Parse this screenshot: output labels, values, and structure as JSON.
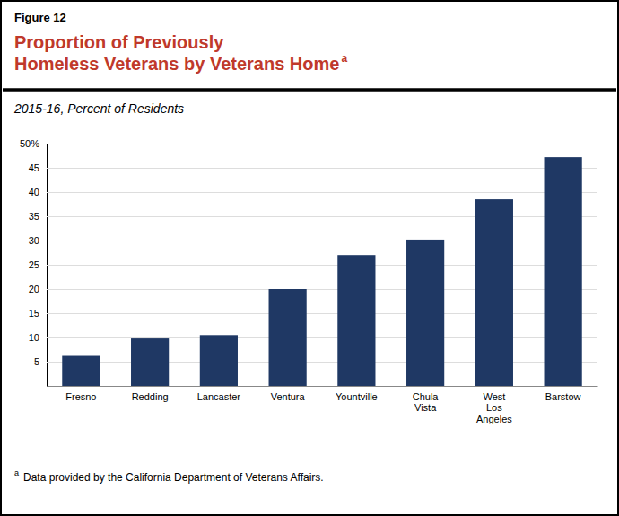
{
  "chart_data": {
    "type": "bar",
    "figure_label": "Figure 12",
    "title": "Proportion of Previously\nHomeless Veterans by Veterans Home",
    "title_superscript": "a",
    "subtitle": "2015-16, Percent of Residents",
    "footnote_marker": "a",
    "footnote": "Data provided by the California Department of Veterans Affairs.",
    "categories": [
      "Fresno",
      "Redding",
      "Lancaster",
      "Ventura",
      "Yountville",
      "Chula\nVista",
      "West\nLos\nAngeles",
      "Barstow"
    ],
    "values": [
      6.2,
      9.8,
      10.5,
      20.0,
      27.0,
      30.2,
      38.5,
      47.2
    ],
    "color": "#1F3864",
    "ylim": [
      0,
      50
    ],
    "yticks": [
      5,
      10,
      15,
      20,
      25,
      30,
      35,
      40,
      45,
      {
        "value": 50,
        "label": "50%"
      }
    ],
    "grid": true
  }
}
